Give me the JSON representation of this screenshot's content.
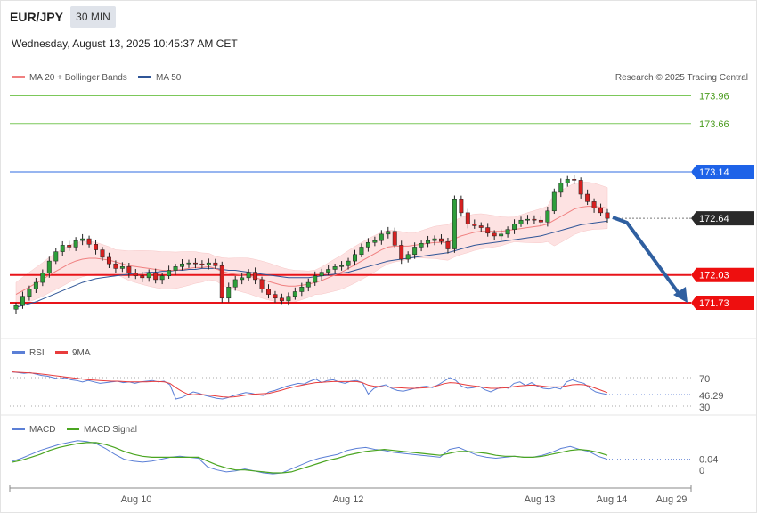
{
  "header": {
    "symbol": "EUR/JPY",
    "timeframe": "30 MIN",
    "datetime": "Wednesday, August 13, 2025 10:45:37 AM CET"
  },
  "legend": {
    "ma20": "MA 20 + Bollinger Bands",
    "ma50": "MA 50",
    "rsi": "RSI",
    "rsi_ma": "9MA",
    "macd": "MACD",
    "macd_signal": "MACD Signal"
  },
  "credit": "Research © 2025 Trading Central",
  "colors": {
    "ma20": "#f08080",
    "ma50": "#2f5597",
    "bollinger_fill": "#fde2e2",
    "bullish": "#2e9e3a",
    "bearish": "#d62020",
    "resistance_green": "#7cc85a",
    "pivot_blue": "#2f6be0",
    "support_red": "#e8141a",
    "forecast_arrow": "#2f5fa0",
    "rsi": "#5b7fd6",
    "rsi_ma": "#e83c3c",
    "macd": "#5b7fd6",
    "macd_signal": "#4aa520"
  },
  "chart_data": {
    "type": "candlestick",
    "symbol": "EUR/JPY",
    "timeframe": "30 MIN",
    "x_ticks": [
      "Aug 10",
      "Aug 12",
      "Aug 13",
      "Aug 14",
      "Aug 29"
    ],
    "y_range": [
      171.4,
      174.1
    ],
    "current_price": 172.64,
    "levels": [
      {
        "label": "173.96",
        "value": 173.96,
        "kind": "resistance"
      },
      {
        "label": "173.66",
        "value": 173.66,
        "kind": "resistance"
      },
      {
        "label": "173.14",
        "value": 173.14,
        "kind": "pivot"
      },
      {
        "label": "172.64",
        "value": 172.64,
        "kind": "last"
      },
      {
        "label": "172.03",
        "value": 172.03,
        "kind": "support"
      },
      {
        "label": "171.73",
        "value": 171.73,
        "kind": "support"
      }
    ],
    "close": [
      171.7,
      171.8,
      171.88,
      171.95,
      172.05,
      172.18,
      172.28,
      172.35,
      172.33,
      172.4,
      172.42,
      172.36,
      172.3,
      172.22,
      172.15,
      172.1,
      172.12,
      172.05,
      172.02,
      172.0,
      172.05,
      171.98,
      172.02,
      172.08,
      172.12,
      172.15,
      172.16,
      172.15,
      172.14,
      172.16,
      172.13,
      171.78,
      171.9,
      171.98,
      172.0,
      172.06,
      171.98,
      171.88,
      171.82,
      171.78,
      171.75,
      171.8,
      171.85,
      171.9,
      171.95,
      172.02,
      172.06,
      172.09,
      172.12,
      172.13,
      172.18,
      172.25,
      172.33,
      172.38,
      172.4,
      172.47,
      172.5,
      172.35,
      172.2,
      172.25,
      172.33,
      172.37,
      172.4,
      172.42,
      172.39,
      172.31,
      172.84,
      172.7,
      172.58,
      172.56,
      172.54,
      172.48,
      172.45,
      172.47,
      172.52,
      172.58,
      172.62,
      172.63,
      172.62,
      172.6,
      172.72,
      172.92,
      173.02,
      173.06,
      173.05,
      172.9,
      172.82,
      172.75,
      172.7,
      172.64
    ],
    "ma20": [
      171.82,
      171.86,
      171.9,
      171.94,
      171.98,
      172.03,
      172.07,
      172.11,
      172.15,
      172.18,
      172.2,
      172.21,
      172.21,
      172.2,
      172.19,
      172.17,
      172.15,
      172.13,
      172.12,
      172.11,
      172.1,
      172.09,
      172.08,
      172.08,
      172.08,
      172.09,
      172.1,
      172.11,
      172.11,
      172.12,
      172.1,
      172.07,
      172.05,
      172.04,
      172.03,
      172.02,
      172.0,
      171.98,
      171.96,
      171.94,
      171.92,
      171.91,
      171.91,
      171.92,
      171.93,
      171.95,
      171.97,
      172.0,
      172.03,
      172.06,
      172.1,
      172.14,
      172.18,
      172.22,
      172.26,
      172.3,
      172.33,
      172.34,
      172.34,
      172.34,
      172.35,
      172.36,
      172.37,
      172.38,
      172.38,
      172.38,
      172.42,
      172.45,
      172.47,
      172.49,
      172.5,
      172.5,
      172.5,
      172.5,
      172.51,
      172.52,
      172.53,
      172.54,
      172.55,
      172.56,
      172.58,
      172.62,
      172.66,
      172.7,
      172.74,
      172.76,
      172.77,
      172.77,
      172.76,
      172.75
    ],
    "ma50": [
      171.68,
      171.7,
      171.72,
      171.74,
      171.77,
      171.8,
      171.83,
      171.86,
      171.89,
      171.92,
      171.95,
      171.97,
      171.99,
      172.0,
      172.01,
      172.02,
      172.03,
      172.04,
      172.05,
      172.05,
      172.06,
      172.06,
      172.07,
      172.07,
      172.08,
      172.08,
      172.09,
      172.09,
      172.1,
      172.1,
      172.1,
      172.09,
      172.08,
      172.08,
      172.07,
      172.06,
      172.05,
      172.04,
      172.03,
      172.02,
      172.01,
      172.0,
      172.0,
      172.0,
      172.0,
      172.01,
      172.02,
      172.03,
      172.04,
      172.05,
      172.06,
      172.08,
      172.1,
      172.12,
      172.14,
      172.16,
      172.18,
      172.19,
      172.2,
      172.21,
      172.22,
      172.23,
      172.24,
      172.25,
      172.26,
      172.27,
      172.29,
      172.31,
      172.33,
      172.35,
      172.36,
      172.37,
      172.38,
      172.39,
      172.4,
      172.41,
      172.42,
      172.43,
      172.44,
      172.45,
      172.47,
      172.49,
      172.51,
      172.53,
      172.55,
      172.57,
      172.58,
      172.59,
      172.6,
      172.61
    ],
    "rsi": {
      "current": 46.29,
      "levels": [
        70,
        30
      ],
      "values": [
        78,
        77,
        76,
        77,
        75,
        73,
        72,
        70,
        68,
        70,
        67,
        66,
        64,
        66,
        64,
        62,
        63,
        64,
        65,
        63,
        64,
        62,
        64,
        65,
        66,
        64,
        65,
        60,
        40,
        42,
        46,
        50,
        48,
        45,
        43,
        41,
        40,
        42,
        45,
        47,
        49,
        48,
        46,
        45,
        50,
        52,
        55,
        58,
        60,
        62,
        61,
        65,
        68,
        63,
        66,
        67,
        64,
        62,
        65,
        66,
        63,
        47,
        55,
        58,
        60,
        55,
        52,
        51,
        53,
        55,
        57,
        58,
        56,
        60,
        65,
        70,
        66,
        58,
        55,
        56,
        58,
        53,
        50,
        54,
        57,
        55,
        62,
        64,
        59,
        63,
        58,
        55,
        54,
        56,
        54,
        64,
        67,
        64,
        62,
        55,
        50,
        48,
        46.29
      ],
      "ma9": [
        78,
        77.5,
        77,
        76.5,
        76,
        75,
        74,
        73,
        72,
        71,
        70,
        69,
        68,
        67,
        66.5,
        66,
        65.5,
        65,
        65,
        64.5,
        64,
        64,
        64,
        64,
        64.5,
        64.5,
        64,
        62,
        56,
        51,
        47,
        46,
        46.5,
        46,
        45,
        44,
        43,
        42.5,
        43,
        44,
        45.5,
        46.5,
        47,
        47.5,
        48,
        50,
        52,
        54.5,
        56.5,
        58.5,
        60,
        61.5,
        63,
        63.5,
        64,
        64.5,
        64.5,
        64.5,
        64.5,
        64.5,
        63,
        59.5,
        58,
        57.5,
        57,
        56.5,
        56,
        55.5,
        55,
        55,
        55.5,
        56,
        57,
        59,
        61.5,
        63,
        62.5,
        61,
        59.5,
        58.5,
        57.5,
        56,
        55,
        55,
        55.5,
        56,
        57.5,
        58.5,
        59,
        59.5,
        59,
        58,
        57,
        57,
        57,
        58.5,
        60,
        60.5,
        60,
        58,
        55,
        52,
        49
      ]
    },
    "macd": {
      "current": 0.04,
      "zero_label": "0",
      "values": [
        0.02,
        0.05,
        0.09,
        0.13,
        0.16,
        0.19,
        0.21,
        0.23,
        0.22,
        0.2,
        0.15,
        0.09,
        0.04,
        0.02,
        0.01,
        0.02,
        0.04,
        0.06,
        0.07,
        0.06,
        0.05,
        -0.04,
        -0.07,
        -0.09,
        -0.08,
        -0.06,
        -0.08,
        -0.1,
        -0.11,
        -0.1,
        -0.06,
        -0.02,
        0.02,
        0.05,
        0.07,
        0.09,
        0.13,
        0.15,
        0.16,
        0.14,
        0.13,
        0.11,
        0.1,
        0.09,
        0.08,
        0.07,
        0.06,
        0.14,
        0.16,
        0.12,
        0.08,
        0.06,
        0.05,
        0.06,
        0.07,
        0.06,
        0.06,
        0.08,
        0.11,
        0.15,
        0.17,
        0.14,
        0.12,
        0.07,
        0.04
      ],
      "signal": [
        0.01,
        0.03,
        0.06,
        0.09,
        0.13,
        0.16,
        0.18,
        0.2,
        0.21,
        0.21,
        0.19,
        0.16,
        0.12,
        0.09,
        0.07,
        0.06,
        0.06,
        0.06,
        0.06,
        0.06,
        0.06,
        0.02,
        -0.02,
        -0.05,
        -0.07,
        -0.07,
        -0.08,
        -0.09,
        -0.1,
        -0.1,
        -0.09,
        -0.06,
        -0.03,
        0.0,
        0.03,
        0.05,
        0.08,
        0.1,
        0.12,
        0.13,
        0.14,
        0.13,
        0.12,
        0.11,
        0.1,
        0.09,
        0.08,
        0.1,
        0.12,
        0.12,
        0.11,
        0.1,
        0.08,
        0.07,
        0.07,
        0.06,
        0.06,
        0.07,
        0.09,
        0.11,
        0.13,
        0.14,
        0.13,
        0.11,
        0.08
      ]
    }
  }
}
